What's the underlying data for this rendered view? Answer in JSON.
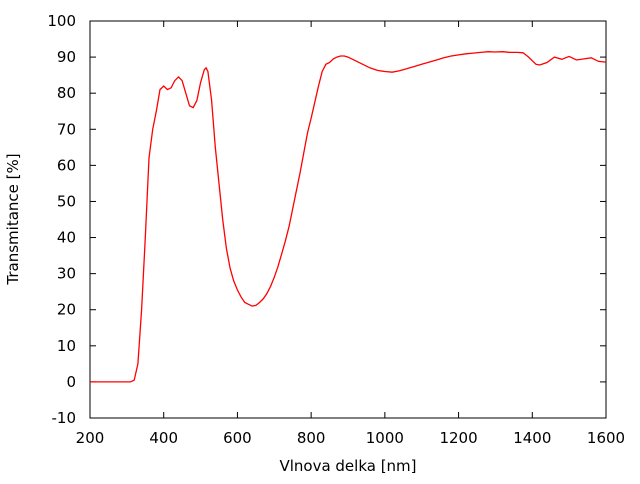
{
  "chart_data": {
    "type": "line",
    "title": "",
    "xlabel": "Vlnova delka [nm]",
    "ylabel": "Transmitance [%]",
    "xlim": [
      200,
      1600
    ],
    "ylim": [
      -10,
      100
    ],
    "xticks": [
      200,
      400,
      600,
      800,
      1000,
      1200,
      1400,
      1600
    ],
    "yticks": [
      -10,
      0,
      10,
      20,
      30,
      40,
      50,
      60,
      70,
      80,
      90,
      100
    ],
    "grid": false,
    "legend": "none",
    "series": [
      {
        "color": "#ff0000",
        "x": [
          200,
          310,
          320,
          330,
          340,
          350,
          360,
          370,
          380,
          390,
          400,
          410,
          420,
          430,
          440,
          450,
          460,
          470,
          480,
          490,
          500,
          510,
          515,
          520,
          530,
          540,
          550,
          560,
          570,
          580,
          590,
          600,
          610,
          620,
          630,
          640,
          650,
          660,
          670,
          680,
          690,
          700,
          710,
          720,
          730,
          740,
          750,
          760,
          770,
          780,
          790,
          800,
          810,
          820,
          830,
          840,
          850,
          860,
          870,
          880,
          890,
          900,
          920,
          940,
          960,
          980,
          1000,
          1020,
          1040,
          1060,
          1080,
          1100,
          1120,
          1140,
          1160,
          1180,
          1200,
          1220,
          1240,
          1260,
          1280,
          1300,
          1320,
          1340,
          1360,
          1375,
          1390,
          1410,
          1420,
          1440,
          1460,
          1480,
          1500,
          1520,
          1540,
          1560,
          1580,
          1600
        ],
        "y": [
          0,
          0,
          0.5,
          5,
          20,
          40,
          62,
          70,
          75,
          81,
          82,
          81,
          81.5,
          83.5,
          84.5,
          83.5,
          80,
          76.5,
          76,
          78,
          83,
          86.5,
          87,
          86,
          78,
          65,
          55,
          45,
          37,
          31.5,
          28,
          25.5,
          23.5,
          22,
          21.5,
          21,
          21.2,
          22,
          23,
          24.5,
          26.5,
          29,
          32,
          35.5,
          39,
          43,
          48,
          53,
          58,
          63.5,
          69,
          73,
          77.5,
          82,
          86,
          88,
          88.5,
          89.5,
          90,
          90.3,
          90.3,
          90,
          89,
          88,
          87,
          86.3,
          86,
          85.8,
          86.2,
          86.8,
          87.4,
          88,
          88.6,
          89.2,
          89.8,
          90.3,
          90.6,
          90.9,
          91.1,
          91.3,
          91.5,
          91.4,
          91.5,
          91.3,
          91.3,
          91.2,
          90,
          88,
          87.8,
          88.5,
          90,
          89.4,
          90.2,
          89.2,
          89.5,
          89.8,
          88.8,
          88.6
        ]
      }
    ]
  }
}
